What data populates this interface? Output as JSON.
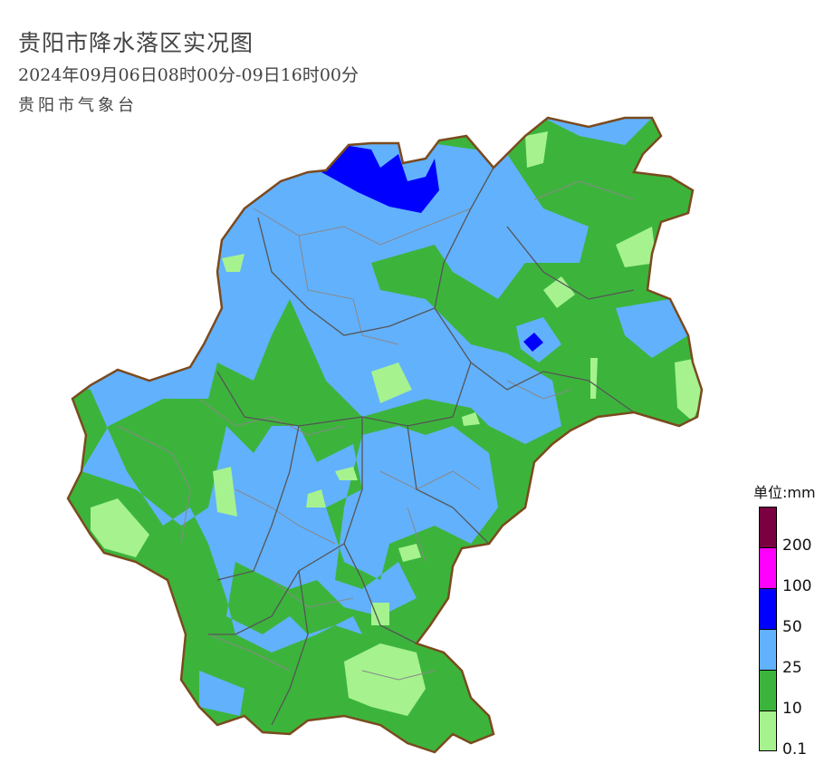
{
  "header": {
    "title": "贵阳市降水落区实况图",
    "subtitle": "2024年09月06日08时00分-09日16时00分",
    "organization": "贵阳市气象台"
  },
  "legend": {
    "unit": "单位:mm",
    "bands": [
      {
        "range": ">200",
        "color": "#7a0041"
      },
      {
        "range": "100-200",
        "color": "#ff00ff"
      },
      {
        "range": "50-100",
        "color": "#0000ff"
      },
      {
        "range": "25-50",
        "color": "#62b1fd"
      },
      {
        "range": "10-25",
        "color": "#3cb43c"
      },
      {
        "range": "0.1-10",
        "color": "#a6f28f"
      }
    ],
    "labels": [
      "200",
      "100",
      "50",
      "25",
      "10",
      "0.1"
    ]
  },
  "map": {
    "boundary_color": "#7b4a1e",
    "district_line_color": "#555555",
    "county_line_color": "#888888"
  }
}
